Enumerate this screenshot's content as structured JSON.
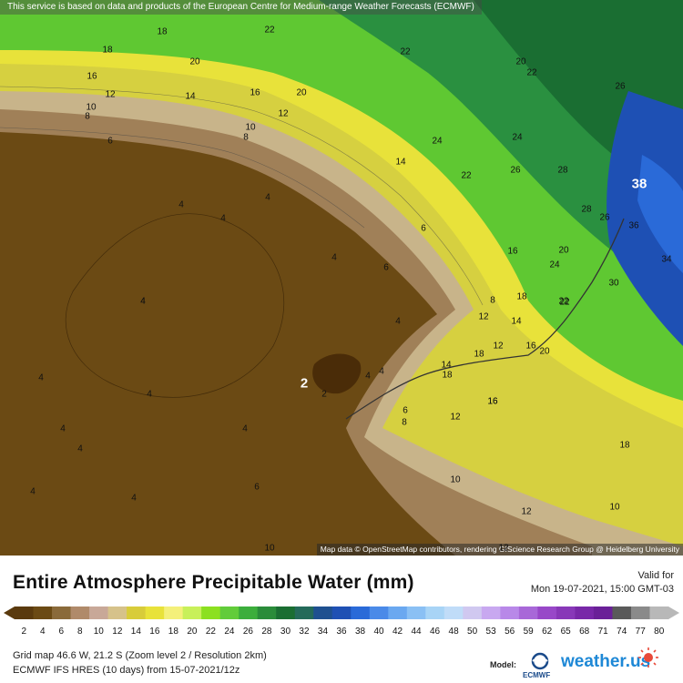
{
  "map": {
    "attribution_top": "This service is based on data and products of the European Centre for Medium-range Weather Forecasts (ECMWF)",
    "attribution_bottom": "Map data © OpenStreetMap contributors, rendering GIScience Research Group @ Heidelberg University",
    "contour_labels": [
      "18",
      "22",
      "12",
      "22",
      "20",
      "22",
      "18",
      "16",
      "14",
      "12",
      "10",
      "20",
      "16",
      "8",
      "10",
      "6",
      "8",
      "22",
      "20",
      "26",
      "24",
      "24",
      "26",
      "28",
      "28",
      "38",
      "26",
      "20",
      "24",
      "30",
      "36",
      "34",
      "4",
      "4",
      "14",
      "22",
      "6",
      "4",
      "4",
      "4",
      "6",
      "16",
      "18",
      "8",
      "12",
      "14",
      "18",
      "22",
      "12",
      "16",
      "20",
      "4",
      "4",
      "4",
      "2",
      "14",
      "2",
      "18",
      "16",
      "6",
      "4",
      "4",
      "8",
      "12",
      "16",
      "4",
      "4",
      "4",
      "18",
      "10",
      "12",
      "10",
      "12",
      "10",
      "6",
      "4",
      "4",
      "4"
    ]
  },
  "panel": {
    "title": "Entire Atmosphere Precipitable Water (mm)",
    "valid_label": "Valid for",
    "valid_time": "Mon 19-07-2021, 15:00 GMT-03",
    "info_line1": "Grid map 46.6 W, 21.2 S (Zoom level 2 / Resolution 2km)",
    "info_line2": "ECMWF IFS HRES (10 days) from 15-07-2021/12z",
    "model_label": "Model:",
    "ecmwf_label": "ECMWF",
    "brand": "weather.us"
  },
  "legend": {
    "ticks": [
      "2",
      "4",
      "6",
      "8",
      "10",
      "12",
      "14",
      "16",
      "18",
      "20",
      "22",
      "24",
      "26",
      "28",
      "30",
      "32",
      "34",
      "36",
      "38",
      "40",
      "42",
      "44",
      "46",
      "48",
      "50",
      "53",
      "56",
      "59",
      "62",
      "65",
      "68",
      "71",
      "74",
      "77",
      "80"
    ],
    "colors": [
      "#5a3a0e",
      "#6b4a14",
      "#8a6a3a",
      "#b08a6a",
      "#c8a898",
      "#d6c28a",
      "#d8cc3a",
      "#e8e23a",
      "#f4f07a",
      "#c8f05a",
      "#8ce020",
      "#62cc3a",
      "#3cae3c",
      "#2a8c3a",
      "#1a6e32",
      "#246a5a",
      "#1e5090",
      "#1e50b4",
      "#2a6ad8",
      "#4a8ae8",
      "#6aa8f0",
      "#8ac0f4",
      "#a8d4f6",
      "#c0dcf8",
      "#d0c8f0",
      "#c8a8f0",
      "#b888e8",
      "#a868d8",
      "#9848c8",
      "#8838b8",
      "#7828a8",
      "#6a2098",
      "#5a5a5a",
      "#8a8a8a",
      "#b8b8b8"
    ]
  }
}
